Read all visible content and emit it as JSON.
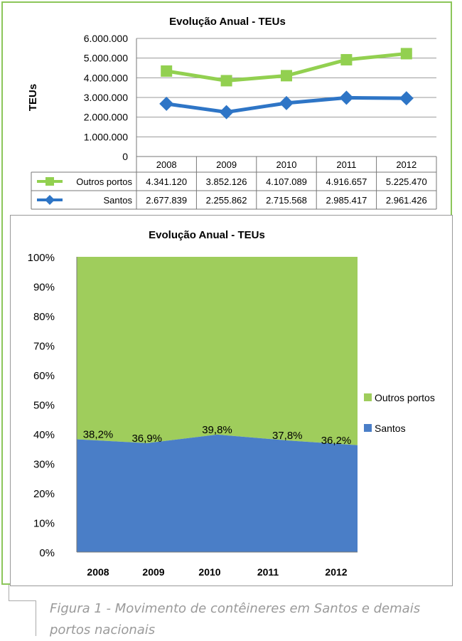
{
  "chart_data": [
    {
      "type": "line",
      "title": "Evolução Anual - TEUs",
      "ylabel": "TEUs",
      "xlabel": "",
      "categories": [
        "2008",
        "2009",
        "2010",
        "2011",
        "2012"
      ],
      "ylim": [
        0,
        6000000
      ],
      "yticks": [
        "0",
        "1.000.000",
        "2.000.000",
        "3.000.000",
        "4.000.000",
        "5.000.000",
        "6.000.000"
      ],
      "grid": true,
      "series": [
        {
          "name": "Outros portos",
          "values": [
            4341120,
            3852126,
            4107089,
            4916657,
            5225470
          ],
          "labels": [
            "4.341.120",
            "3.852.126",
            "4.107.089",
            "4.916.657",
            "5.225.470"
          ],
          "color": "#92d050",
          "marker": "square"
        },
        {
          "name": "Santos",
          "values": [
            2677839,
            2255862,
            2715568,
            2985417,
            2961426
          ],
          "labels": [
            "2.677.839",
            "2.255.862",
            "2.715.568",
            "2.985.417",
            "2.961.426"
          ],
          "color": "#2e75c6",
          "marker": "diamond"
        }
      ],
      "data_table": true
    },
    {
      "type": "area",
      "stacked_percent": true,
      "title": "Evolução Anual - TEUs",
      "categories": [
        "2008",
        "2009",
        "2010",
        "2011",
        "2012"
      ],
      "ylim": [
        0,
        100
      ],
      "yticks": [
        "0%",
        "10%",
        "20%",
        "30%",
        "40%",
        "50%",
        "60%",
        "70%",
        "80%",
        "90%",
        "100%"
      ],
      "legend": "right",
      "series": [
        {
          "name": "Santos",
          "values": [
            38.2,
            36.9,
            39.8,
            37.8,
            36.2
          ],
          "labels": [
            "38,2%",
            "36,9%",
            "39,8%",
            "37,8%",
            "36,2%"
          ],
          "color": "#4a7ec7"
        },
        {
          "name": "Outros portos",
          "values": [
            61.8,
            63.1,
            60.2,
            62.2,
            63.8
          ],
          "color": "#9fcd5c"
        }
      ]
    }
  ],
  "caption": "Figura 1 - Movimento de contêineres em Santos e demais portos nacionais"
}
